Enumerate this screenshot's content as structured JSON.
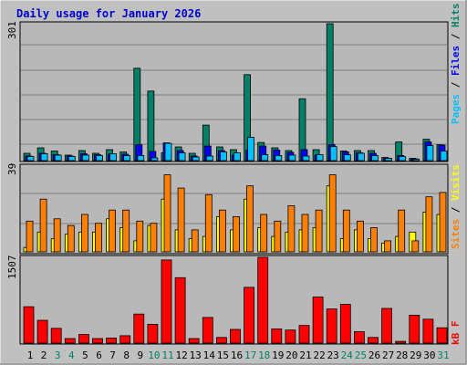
{
  "chart_data": [
    {
      "type": "bar",
      "title": "Daily usage for January 2026",
      "panel": "top",
      "ymax_label": "301",
      "ylabel": [
        "Pages",
        "Files",
        "Hits"
      ],
      "categories": [
        "1",
        "2",
        "3",
        "4",
        "5",
        "6",
        "7",
        "8",
        "9",
        "10",
        "11",
        "12",
        "13",
        "14",
        "15",
        "16",
        "17",
        "18",
        "19",
        "20",
        "21",
        "22",
        "23",
        "24",
        "25",
        "26",
        "27",
        "28",
        "29",
        "30",
        "31"
      ],
      "weekend_days": [
        "3",
        "4",
        "10",
        "11",
        "17",
        "18",
        "24",
        "25",
        "31"
      ],
      "ylim": [
        0,
        301
      ],
      "series": [
        {
          "name": "Hits",
          "values": [
            16,
            28,
            21,
            12,
            22,
            16,
            24,
            19,
            203,
            153,
            17,
            30,
            16,
            78,
            30,
            24,
            189,
            40,
            28,
            22,
            136,
            24,
            301,
            21,
            22,
            22,
            7,
            41,
            5,
            47,
            35
          ]
        },
        {
          "name": "Files",
          "values": [
            10,
            16,
            13,
            10,
            15,
            13,
            14,
            14,
            35,
            20,
            39,
            22,
            10,
            32,
            22,
            12,
            23,
            32,
            23,
            18,
            24,
            12,
            35,
            19,
            17,
            16,
            5,
            11,
            4,
            41,
            34
          ]
        },
        {
          "name": "Pages",
          "values": [
            9,
            15,
            12,
            9,
            12,
            11,
            15,
            11,
            11,
            6,
            38,
            17,
            8,
            10,
            19,
            17,
            51,
            13,
            11,
            12,
            10,
            13,
            31,
            13,
            16,
            11,
            5,
            9,
            3,
            33,
            21
          ]
        }
      ],
      "colors": {
        "Hits": "#008066",
        "Files": "#0000ff",
        "Pages": "#00c0ff"
      }
    },
    {
      "type": "bar",
      "panel": "middle",
      "ymax_label": "39",
      "ylabel": [
        "Sites",
        "Visits"
      ],
      "categories": [
        "1",
        "2",
        "3",
        "4",
        "5",
        "6",
        "7",
        "8",
        "9",
        "10",
        "11",
        "12",
        "13",
        "14",
        "15",
        "16",
        "17",
        "18",
        "19",
        "20",
        "21",
        "22",
        "23",
        "24",
        "25",
        "26",
        "27",
        "28",
        "29",
        "30",
        "31"
      ],
      "ylim": [
        0,
        39
      ],
      "series": [
        {
          "name": "Visits",
          "values": [
            2,
            9,
            6,
            8,
            9,
            9,
            15,
            11,
            5,
            12,
            24,
            10,
            6,
            7,
            16,
            10,
            24,
            11,
            7,
            9,
            10,
            11,
            30,
            6,
            10,
            6,
            4,
            7,
            9,
            18,
            17
          ]
        },
        {
          "name": "Sites",
          "values": [
            14,
            24,
            15,
            12,
            17,
            13,
            19,
            19,
            14,
            13,
            35,
            29,
            10,
            26,
            19,
            16,
            30,
            17,
            14,
            21,
            17,
            19,
            35,
            19,
            14,
            11,
            5,
            19,
            5,
            25,
            27
          ]
        }
      ],
      "colors": {
        "Visits": "#ffff00",
        "Sites": "#ff8000"
      }
    },
    {
      "type": "bar",
      "panel": "bottom",
      "ymax_label": "1507",
      "ylabel": [
        "kB F"
      ],
      "categories": [
        "1",
        "2",
        "3",
        "4",
        "5",
        "6",
        "7",
        "8",
        "9",
        "10",
        "11",
        "12",
        "13",
        "14",
        "15",
        "16",
        "17",
        "18",
        "19",
        "20",
        "21",
        "22",
        "23",
        "24",
        "25",
        "26",
        "27",
        "28",
        "29",
        "30",
        "31"
      ],
      "ylim": [
        0,
        1507
      ],
      "series": [
        {
          "name": "kB F",
          "values": [
            640,
            400,
            260,
            80,
            150,
            80,
            90,
            130,
            510,
            330,
            1460,
            1150,
            80,
            450,
            100,
            240,
            980,
            1507,
            250,
            230,
            310,
            810,
            600,
            680,
            200,
            100,
            610,
            30,
            490,
            420,
            270
          ]
        }
      ],
      "colors": {
        "kB F": "#ff0000"
      }
    }
  ]
}
